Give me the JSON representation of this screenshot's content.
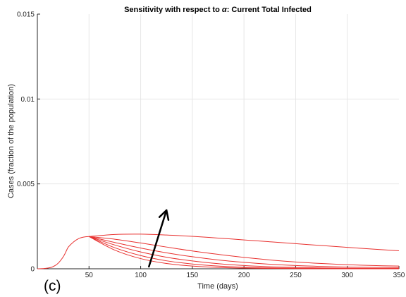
{
  "chart_data": {
    "type": "line",
    "title_prefix": "Sensitivity with respect to ",
    "title_symbol": "α",
    "title_suffix": ": Current Total Infected",
    "xlabel": "Time (days)",
    "ylabel": "Cases (fraction of the population)",
    "xlim": [
      0,
      350
    ],
    "ylim": [
      0,
      0.015
    ],
    "xticks": [
      50,
      100,
      150,
      200,
      250,
      300,
      350
    ],
    "yticks": [
      0,
      0.005,
      0.01,
      0.015
    ],
    "ytick_labels": [
      "0",
      "0.005",
      "0.01",
      "0.015"
    ],
    "grid": true,
    "panel_label": "(c)",
    "line_color": "#e8312f",
    "arrow_color": "#000000",
    "arrow": {
      "from": [
        108,
        0.00013
      ],
      "to": [
        125,
        0.00345
      ]
    },
    "shared_prefix": {
      "x": [
        0,
        5,
        10,
        15,
        20,
        25,
        28,
        30,
        35,
        40,
        45,
        50
      ],
      "y": [
        0.0,
        1e-05,
        4e-05,
        0.00012,
        0.00032,
        0.0007,
        0.00105,
        0.00128,
        0.00158,
        0.00178,
        0.00187,
        0.0019
      ]
    },
    "x": [
      50,
      75,
      100,
      125,
      150,
      175,
      200,
      225,
      250,
      275,
      300,
      325,
      350
    ],
    "series": [
      {
        "values": [
          0.0019,
          0.00202,
          0.00204,
          0.00199,
          0.00191,
          0.00181,
          0.0017,
          0.00159,
          0.00148,
          0.00137,
          0.00126,
          0.00116,
          0.00106
        ]
      },
      {
        "values": [
          0.0019,
          0.00174,
          0.00152,
          0.00128,
          0.00105,
          0.00085,
          0.00067,
          0.00052,
          0.0004,
          0.00031,
          0.00024,
          0.00019,
          0.00016
        ]
      },
      {
        "values": [
          0.0019,
          0.00155,
          0.00122,
          0.00094,
          0.00071,
          0.00052,
          0.00038,
          0.00027,
          0.00019,
          0.00014,
          0.0001,
          8e-05,
          7e-05
        ]
      },
      {
        "values": [
          0.0019,
          0.0014,
          0.00099,
          0.00068,
          0.00046,
          0.0003,
          0.00019,
          0.00012,
          8e-05,
          5e-05,
          3e-05,
          2e-05,
          2e-05
        ]
      },
      {
        "values": [
          0.0019,
          0.00124,
          0.00078,
          0.00047,
          0.00028,
          0.00016,
          9e-05,
          5e-05,
          3e-05,
          2e-05,
          1e-05,
          1e-05,
          1e-05
        ]
      },
      {
        "values": [
          0.0019,
          0.0011,
          0.0006,
          0.00031,
          0.00016,
          8e-05,
          4e-05,
          2e-05,
          1e-05,
          5e-06,
          0.0,
          0.0,
          0.0
        ]
      }
    ]
  }
}
